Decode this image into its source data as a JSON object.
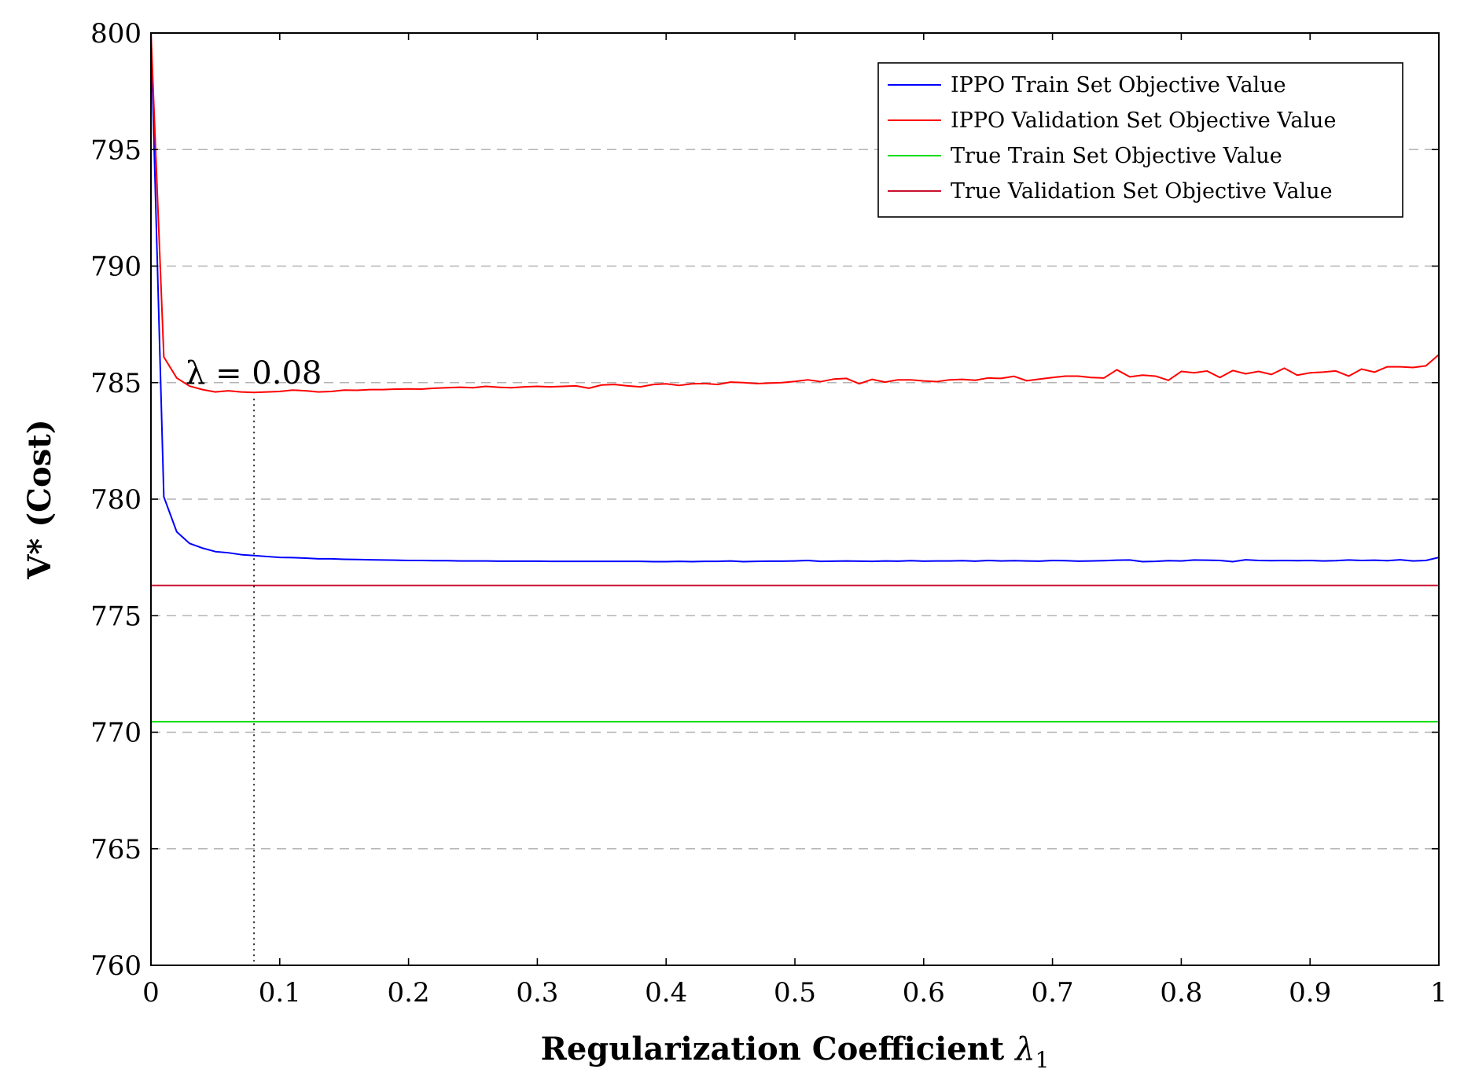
{
  "chart_data": {
    "type": "line",
    "xlabel": "Regularization Coefficient",
    "xlabel_symbol": "λ",
    "xlabel_subscript": "1",
    "ylabel": "V* (Cost)",
    "xlim": [
      0,
      1
    ],
    "ylim": [
      760,
      800
    ],
    "xticks": [
      0,
      0.1,
      0.2,
      0.3,
      0.4,
      0.5,
      0.6,
      0.7,
      0.8,
      0.9,
      1
    ],
    "xtick_labels": [
      "0",
      "0.1",
      "0.2",
      "0.3",
      "0.4",
      "0.5",
      "0.6",
      "0.7",
      "0.8",
      "0.9",
      "1"
    ],
    "yticks": [
      760,
      765,
      770,
      775,
      780,
      785,
      790,
      795,
      800
    ],
    "ytick_labels": [
      "760",
      "765",
      "770",
      "775",
      "780",
      "785",
      "790",
      "795",
      "800"
    ],
    "grid": "horizontal dashed",
    "legend_position": "top-right",
    "annotation": {
      "text": "λ = 0.08",
      "x": 0.08,
      "line": "vertical dotted"
    },
    "x": [
      0,
      0.01,
      0.02,
      0.03,
      0.04,
      0.05,
      0.06,
      0.07,
      0.08,
      0.09,
      0.1,
      0.11,
      0.12,
      0.13,
      0.14,
      0.15,
      0.16,
      0.17,
      0.18,
      0.19,
      0.2,
      0.21,
      0.22,
      0.23,
      0.24,
      0.25,
      0.26,
      0.27,
      0.28,
      0.29,
      0.3,
      0.31,
      0.32,
      0.33,
      0.34,
      0.35,
      0.36,
      0.37,
      0.38,
      0.39,
      0.4,
      0.41,
      0.42,
      0.43,
      0.44,
      0.45,
      0.46,
      0.47,
      0.48,
      0.49,
      0.5,
      0.51,
      0.52,
      0.53,
      0.54,
      0.55,
      0.56,
      0.57,
      0.58,
      0.59,
      0.6,
      0.61,
      0.62,
      0.63,
      0.64,
      0.65,
      0.66,
      0.67,
      0.68,
      0.69,
      0.7,
      0.71,
      0.72,
      0.73,
      0.74,
      0.75,
      0.76,
      0.77,
      0.78,
      0.79,
      0.8,
      0.81,
      0.82,
      0.83,
      0.84,
      0.85,
      0.86,
      0.87,
      0.88,
      0.89,
      0.9,
      0.91,
      0.92,
      0.93,
      0.94,
      0.95,
      0.96,
      0.97,
      0.98,
      0.99,
      1
    ],
    "series": [
      {
        "name": "IPPO Train Set Objective Value",
        "color": "#0000ff",
        "values": [
          800,
          780.1,
          778.6,
          778.1,
          777.9,
          777.75,
          777.7,
          777.62,
          777.58,
          777.54,
          777.5,
          777.49,
          777.47,
          777.44,
          777.44,
          777.42,
          777.41,
          777.4,
          777.39,
          777.38,
          777.37,
          777.37,
          777.36,
          777.36,
          777.35,
          777.35,
          777.35,
          777.34,
          777.34,
          777.34,
          777.34,
          777.33,
          777.33,
          777.33,
          777.33,
          777.33,
          777.33,
          777.33,
          777.33,
          777.32,
          777.32,
          777.33,
          777.32,
          777.33,
          777.33,
          777.35,
          777.32,
          777.33,
          777.34,
          777.34,
          777.35,
          777.37,
          777.33,
          777.34,
          777.35,
          777.34,
          777.33,
          777.35,
          777.34,
          777.36,
          777.34,
          777.35,
          777.35,
          777.36,
          777.34,
          777.37,
          777.35,
          777.36,
          777.35,
          777.34,
          777.37,
          777.36,
          777.34,
          777.35,
          777.36,
          777.38,
          777.39,
          777.32,
          777.33,
          777.36,
          777.35,
          777.39,
          777.38,
          777.37,
          777.32,
          777.4,
          777.37,
          777.36,
          777.37,
          777.36,
          777.37,
          777.35,
          777.36,
          777.39,
          777.37,
          777.38,
          777.36,
          777.4,
          777.35,
          777.37,
          777.5
        ]
      },
      {
        "name": "IPPO Validation Set Objective Value",
        "color": "#ff0000",
        "values": [
          800,
          786.1,
          785.2,
          784.85,
          784.7,
          784.6,
          784.65,
          784.6,
          784.58,
          784.6,
          784.62,
          784.68,
          784.65,
          784.6,
          784.62,
          784.68,
          784.67,
          784.7,
          784.7,
          784.72,
          784.73,
          784.72,
          784.76,
          784.78,
          784.8,
          784.78,
          784.84,
          784.8,
          784.78,
          784.82,
          784.84,
          784.82,
          784.84,
          784.86,
          784.76,
          784.9,
          784.92,
          784.86,
          784.82,
          784.92,
          784.95,
          784.88,
          784.95,
          784.96,
          784.92,
          785.02,
          785.0,
          784.96,
          784.98,
          785.0,
          785.05,
          785.12,
          785.04,
          785.15,
          785.18,
          784.95,
          785.14,
          785.02,
          785.12,
          785.12,
          785.07,
          785.04,
          785.12,
          785.14,
          785.1,
          785.2,
          785.18,
          785.27,
          785.08,
          785.15,
          785.22,
          785.28,
          785.28,
          785.22,
          785.2,
          785.55,
          785.25,
          785.32,
          785.28,
          785.1,
          785.48,
          785.42,
          785.5,
          785.22,
          785.52,
          785.38,
          785.48,
          785.35,
          785.62,
          785.32,
          785.42,
          785.45,
          785.5,
          785.28,
          785.58,
          785.45,
          785.68,
          785.68,
          785.65,
          785.72,
          786.2
        ]
      },
      {
        "name": "True Train Set Objective Value",
        "color": "#00dd00",
        "constant": 770.45
      },
      {
        "name": "True Validation Set Objective Value",
        "color": "#c8102e",
        "constant": 776.3
      }
    ]
  }
}
